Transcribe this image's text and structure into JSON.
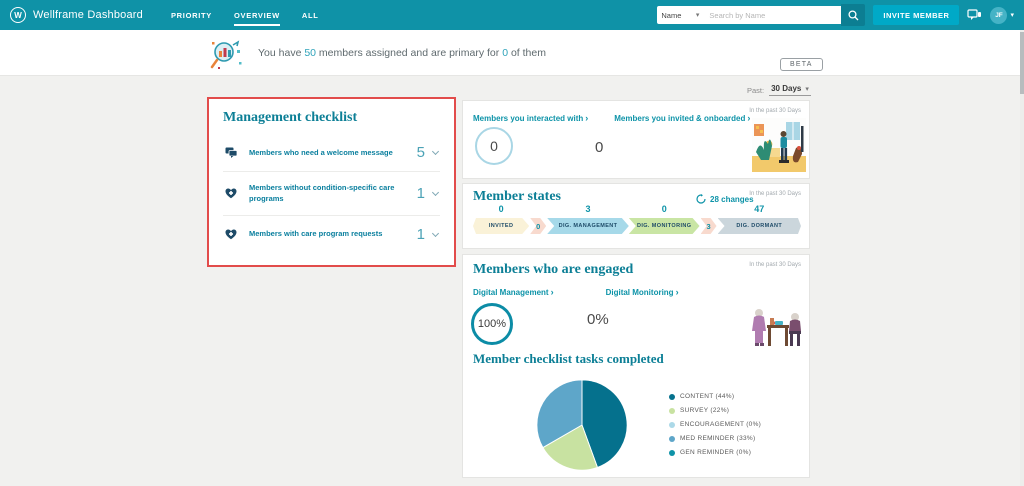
{
  "topbar": {
    "brand": "Wellframe Dashboard",
    "logo_letter": "W",
    "tabs": [
      {
        "label": "PRIORITY",
        "active": false
      },
      {
        "label": "OVERVIEW",
        "active": true
      },
      {
        "label": "ALL",
        "active": false
      }
    ],
    "search": {
      "filter_value": "Name",
      "placeholder": "Search by Name"
    },
    "invite_button": "INVITE MEMBER",
    "avatar_initials": "JF"
  },
  "header": {
    "message_prefix": "You have ",
    "assigned_count": "50",
    "message_middle": " members assigned and are primary for ",
    "primary_count": "0",
    "message_suffix": " of them",
    "beta_badge": "BETA"
  },
  "past_filter": {
    "label": "Past:",
    "value": "30 Days"
  },
  "checklist": {
    "title": "Management checklist",
    "items": [
      {
        "icon": "chat-icon",
        "label": "Members who need a welcome message",
        "count": "5"
      },
      {
        "icon": "care-heart-icon",
        "label": "Members without condition-specific care programs",
        "count": "1"
      },
      {
        "icon": "care-heart-icon",
        "label": "Members with care program requests",
        "count": "1"
      }
    ]
  },
  "interactions_card": {
    "link1": "Members you interacted with",
    "value1": "0",
    "link2": "Members you invited & onboarded",
    "value2": "0",
    "period": "In the past 30 Days"
  },
  "member_states": {
    "title": "Member states",
    "changes_label": "28 changes",
    "period": "In the past 30 Days",
    "stages": [
      {
        "label": "INVITED",
        "count": "0",
        "color": "#FAF2D8"
      },
      {
        "label": "DIG. MANAGEMENT",
        "count": "3",
        "color": "#A6D9E9"
      },
      {
        "label": "DIG. MONITORING",
        "count": "0",
        "color": "#C9E5A4"
      },
      {
        "label": "DIG. DORMANT",
        "count": "47",
        "color": "#CBD6DC"
      }
    ],
    "connectors": [
      {
        "value": "0"
      },
      {
        "value": "3"
      }
    ]
  },
  "engaged_card": {
    "title": "Members who are engaged",
    "period": "In the past 30 Days",
    "link1": "Digital Management",
    "value1": "100%",
    "link2": "Digital Monitoring",
    "value2": "0%"
  },
  "chart_data": {
    "type": "pie",
    "title": "Member checklist tasks completed",
    "slices": [
      {
        "label": "CONTENT",
        "pct": 44,
        "color": "#05718D"
      },
      {
        "label": "SURVEY",
        "pct": 22,
        "color": "#C8E2A1"
      },
      {
        "label": "ENCOURAGEMENT",
        "pct": 0,
        "color": "#ACD9E8"
      },
      {
        "label": "MED REMINDER",
        "pct": 33,
        "color": "#5EA6C9"
      },
      {
        "label": "GEN REMINDER",
        "pct": 0,
        "color": "#0E93A8"
      }
    ],
    "legend_position": "right"
  },
  "colors": {
    "accent": "#0F92A7",
    "highlight_border": "#E24C4B",
    "invite_button": "#00A9C7"
  }
}
